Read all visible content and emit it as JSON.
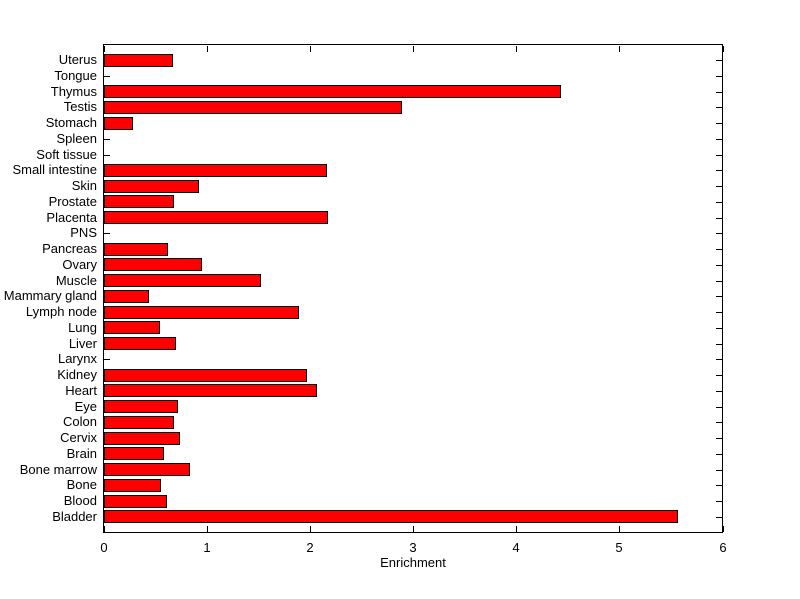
{
  "figure": {
    "background_color": "#FFFFFF",
    "axis_color": "#000000"
  },
  "chart_data": {
    "type": "bar",
    "orientation": "horizontal",
    "title": "",
    "xlabel": "Enrichment",
    "ylabel": "",
    "xlim": [
      0,
      6
    ],
    "xticks": [
      0,
      1,
      2,
      3,
      4,
      5,
      6
    ],
    "grid": false,
    "legend": "none",
    "bar_color": "#FF0000",
    "bar_edge_color": "#000000",
    "categories": [
      "Uterus",
      "Tongue",
      "Thymus",
      "Testis",
      "Stomach",
      "Spleen",
      "Soft tissue",
      "Small intestine",
      "Skin",
      "Prostate",
      "Placenta",
      "PNS",
      "Pancreas",
      "Ovary",
      "Muscle",
      "Mammary gland",
      "Lymph node",
      "Lung",
      "Liver",
      "Larynx",
      "Kidney",
      "Heart",
      "Eye",
      "Colon",
      "Cervix",
      "Brain",
      "Bone marrow",
      "Bone",
      "Blood",
      "Bladder"
    ],
    "values": [
      0.67,
      0,
      4.43,
      2.89,
      0.28,
      0,
      0,
      2.16,
      0.92,
      0.68,
      2.17,
      0,
      0.62,
      0.95,
      1.52,
      0.44,
      1.89,
      0.54,
      0.7,
      0,
      1.97,
      2.06,
      0.72,
      0.68,
      0.74,
      0.58,
      0.83,
      0.55,
      0.61,
      5.56
    ]
  }
}
